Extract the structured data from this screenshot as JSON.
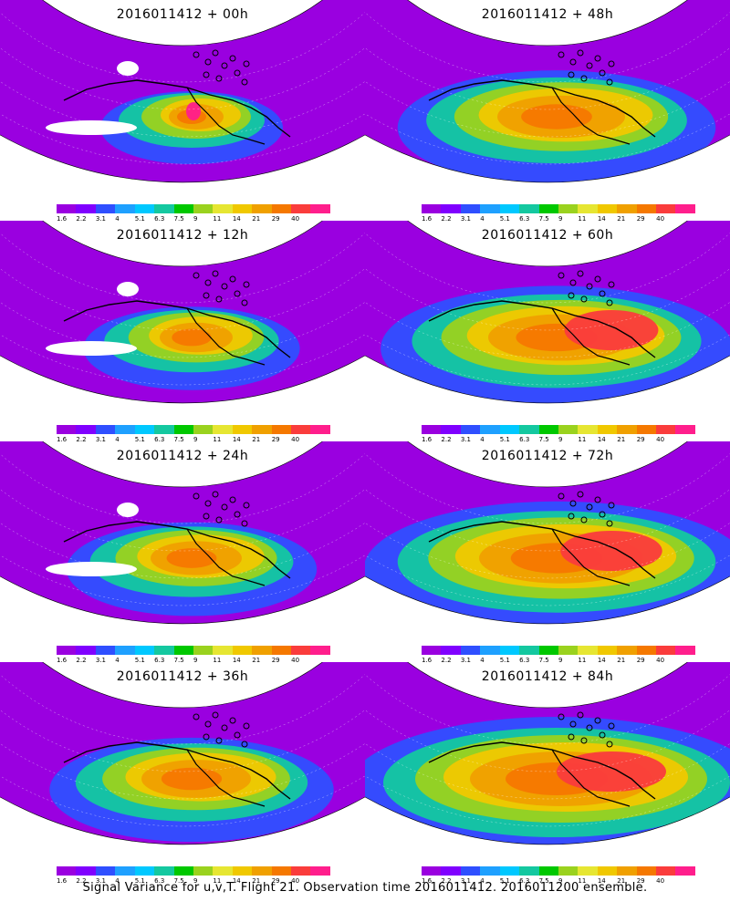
{
  "footer_caption": "Signal Variance for u,v,T. Flight 21. Observation time 2016011412. 2016011200 ensemble.",
  "colorbar": {
    "ticks": [
      "1.6",
      "2.2",
      "3.1",
      "4",
      "5.1",
      "6.3",
      "7.5",
      "9",
      "11",
      "14",
      "21",
      "29",
      "40"
    ],
    "colors": [
      "#9a00e0",
      "#8000ff",
      "#2f4fff",
      "#1ea0ff",
      "#00c8ff",
      "#14c8a0",
      "#00c800",
      "#9ad21e",
      "#e6e632",
      "#f0c800",
      "#f0a000",
      "#f57800",
      "#fa3c3c",
      "#ff1e8c"
    ]
  },
  "panels": [
    {
      "title": "2016011412 + 00h",
      "lead_hours": 0
    },
    {
      "title": "2016011412 + 48h",
      "lead_hours": 48
    },
    {
      "title": "2016011412 + 12h",
      "lead_hours": 12
    },
    {
      "title": "2016011412 + 60h",
      "lead_hours": 60
    },
    {
      "title": "2016011412 + 24h",
      "lead_hours": 24
    },
    {
      "title": "2016011412 + 72h",
      "lead_hours": 72
    },
    {
      "title": "2016011412 + 36h",
      "lead_hours": 36
    },
    {
      "title": "2016011412 + 84h",
      "lead_hours": 84
    }
  ]
}
